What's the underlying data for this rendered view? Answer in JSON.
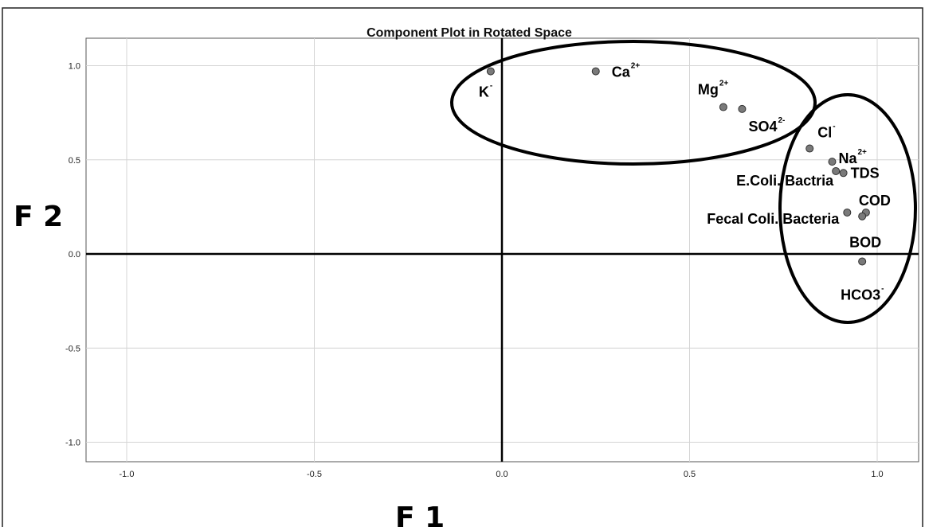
{
  "chart_data": {
    "type": "scatter",
    "title": "Component Plot in Rotated Space",
    "xlabel": "F 1",
    "ylabel": "F 2",
    "xlim": [
      -1.1,
      1.1
    ],
    "ylim": [
      -1.1,
      1.1
    ],
    "x_ticks": [
      "-1.0",
      "-0.5",
      "0.0",
      "0.5",
      "1.0"
    ],
    "y_ticks": [
      "1.0",
      "0.5",
      "0.0",
      "-0.5",
      "-1.0"
    ],
    "grid": true,
    "points": [
      {
        "label": "K",
        "sup": "-",
        "x": -0.03,
        "y": 0.97
      },
      {
        "label": "Ca",
        "sup": "2+",
        "x": 0.25,
        "y": 0.97
      },
      {
        "label": "Mg",
        "sup": "2+",
        "x": 0.59,
        "y": 0.78
      },
      {
        "label": "SO4",
        "sup": "2-",
        "x": 0.64,
        "y": 0.77
      },
      {
        "label": "Cl",
        "sup": "-",
        "x": 0.82,
        "y": 0.56
      },
      {
        "label": "Na",
        "sup": "2+",
        "x": 0.88,
        "y": 0.49
      },
      {
        "label": "E.Coli. Bactria",
        "sup": "",
        "x": 0.89,
        "y": 0.44
      },
      {
        "label": "TDS",
        "sup": "",
        "x": 0.91,
        "y": 0.43
      },
      {
        "label": "Fecal Coli. Bacteria",
        "sup": "",
        "x": 0.92,
        "y": 0.22
      },
      {
        "label": "COD",
        "sup": "",
        "x": 0.97,
        "y": 0.22
      },
      {
        "label": "BOD",
        "sup": "",
        "x": 0.96,
        "y": 0.2
      },
      {
        "label": "HCO3",
        "sup": "-",
        "x": 0.96,
        "y": -0.04
      }
    ]
  }
}
